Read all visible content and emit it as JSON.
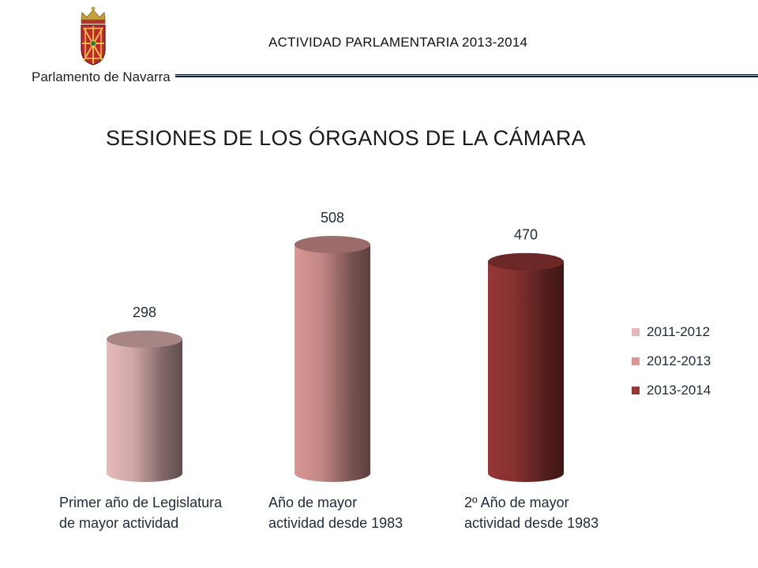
{
  "header": {
    "organization": "Parlamento de Navarra",
    "title": "ACTIVIDAD PARLAMENTARIA 2013-2014"
  },
  "logo": {
    "icon": "navarra-coat-of-arms-icon"
  },
  "colors": {
    "rule_dark": "#0d1a33",
    "rule_light": "#b9c3d6"
  },
  "chart_data": {
    "type": "bar",
    "title": "SESIONES DE LOS ÓRGANOS DE LA CÁMARA",
    "categories": [
      "Primer año de Legislatura\nde mayor actividad",
      "Año de mayor\nactividad desde 1983",
      "2º Año de mayor\nactividad desde 1983"
    ],
    "series": [
      {
        "name": "2011-2012",
        "values": [
          298,
          null,
          null
        ],
        "color": "#e6b9b8"
      },
      {
        "name": "2012-2013",
        "values": [
          null,
          508,
          null
        ],
        "color": "#d99694"
      },
      {
        "name": "2013-2014",
        "values": [
          null,
          null,
          470
        ],
        "color": "#953735"
      }
    ],
    "data_labels": [
      "298",
      "508",
      "470"
    ],
    "ylim": [
      0,
      508
    ],
    "grid": false,
    "legend": "right",
    "style": "3d-cylinder"
  }
}
